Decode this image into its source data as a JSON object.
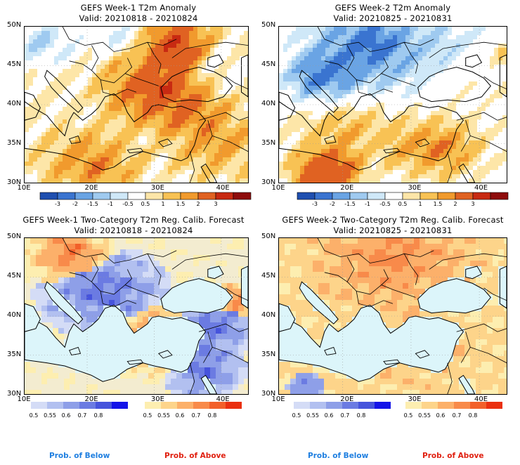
{
  "panels": [
    {
      "id": "p1",
      "title_line1": "GEFS Week-1 T2m Anomaly",
      "title_line2": "Valid: 20210818 - 20210824"
    },
    {
      "id": "p2",
      "title_line1": "GEFS Week-2 T2m Anomaly",
      "title_line2": "Valid: 20210825 - 20210831"
    },
    {
      "id": "p3",
      "title_line1": "GEFS Week-1 Two-Category T2m Reg. Calib. Forecast",
      "title_line2": "Valid: 20210818 - 20210824"
    },
    {
      "id": "p4",
      "title_line1": "GEFS Week-2 Two-Category T2m Reg. Calib. Forecast",
      "title_line2": "Valid: 20210825 - 20210831"
    }
  ],
  "axes": {
    "lat_labels": [
      "50N",
      "45N",
      "40N",
      "35N",
      "30N"
    ],
    "lon_labels": [
      "10E",
      "20E",
      "30E",
      "40E"
    ]
  },
  "anomaly_colorbar": {
    "labels": [
      "-3",
      "-2",
      "-1.5",
      "-1",
      "-0.5",
      "0.5",
      "1",
      "1.5",
      "2",
      "3"
    ],
    "colors": [
      "#1f4fb0",
      "#3a74d0",
      "#6aa4e4",
      "#9fcaf0",
      "#cfe8f8",
      "#ffffff",
      "#fde6a8",
      "#f8c254",
      "#f19a2d",
      "#e06222",
      "#c82a12",
      "#8e0c0c"
    ]
  },
  "prob_colorbars": {
    "below": {
      "labels": [
        "0.5",
        "0.55",
        "0.6",
        "0.7",
        "0.8"
      ],
      "colors": [
        "#d4dcf6",
        "#b2c0f0",
        "#8e9fe8",
        "#6b7be2",
        "#4654dc",
        "#1414e8"
      ]
    },
    "above": {
      "labels": [
        "0.5",
        "0.55",
        "0.6",
        "0.7",
        "0.8"
      ],
      "colors": [
        "#fdeeb0",
        "#fdd48a",
        "#fcb06a",
        "#f88a4a",
        "#f2602a",
        "#ea3010"
      ]
    }
  },
  "legend_text": {
    "below_1": "Prob. of Below",
    "above_1": "Prob. of Above",
    "below_2": "Prob. of Below",
    "above_2": "Prob. of Above"
  },
  "colors": {
    "below": "#1f7fe0",
    "above": "#e02010",
    "sea": "#dcf5fa",
    "land_near_normal": "#f3ecd0"
  }
}
